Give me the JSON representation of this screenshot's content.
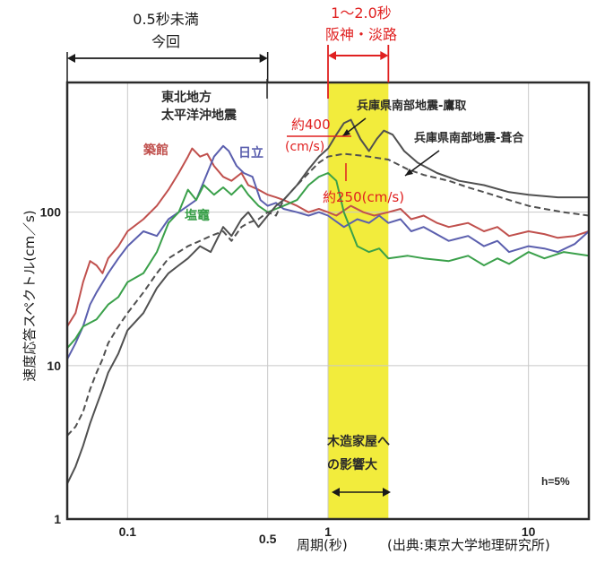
{
  "chart_data": {
    "type": "line",
    "xscale": "log",
    "yscale": "log",
    "xlim": [
      0.05,
      20
    ],
    "ylim": [
      1,
      700
    ],
    "ylabel": "速度応答スペクトル(cm／s)",
    "xlabel": "周期(秒)",
    "source": "(出典:東京大学地理研究所)",
    "x_ticks": [
      "0.1",
      "0.5",
      "1",
      "10"
    ],
    "y_ticks": [
      "1",
      "10",
      "100"
    ],
    "damping_label": "h=5%",
    "highlight_band": {
      "x": [
        1.0,
        2.0
      ],
      "color": "#f2ec3c",
      "labels": [
        "1〜2.0秒",
        "阪神・淡路"
      ],
      "note": [
        "木造家屋へ",
        "の影響大"
      ]
    },
    "range_annotation": {
      "x": [
        0.05,
        0.5
      ],
      "labels": [
        "0.5秒未満",
        "今回"
      ]
    },
    "value_annotations": [
      {
        "label": "約400",
        "unit": "(cm/s)",
        "x": 1.2,
        "y": 400
      },
      {
        "label": "約250(cm/s)",
        "x": 1.2,
        "y": 250
      }
    ],
    "group_label": [
      "東北地方",
      "太平洋沖地震"
    ],
    "series": [
      {
        "name": "築館",
        "color": "#c0504d",
        "dash": false,
        "points": [
          [
            0.05,
            18
          ],
          [
            0.055,
            22
          ],
          [
            0.06,
            35
          ],
          [
            0.065,
            48
          ],
          [
            0.07,
            45
          ],
          [
            0.075,
            40
          ],
          [
            0.08,
            50
          ],
          [
            0.09,
            60
          ],
          [
            0.1,
            75
          ],
          [
            0.12,
            90
          ],
          [
            0.14,
            110
          ],
          [
            0.16,
            140
          ],
          [
            0.18,
            180
          ],
          [
            0.2,
            230
          ],
          [
            0.21,
            260
          ],
          [
            0.23,
            230
          ],
          [
            0.25,
            240
          ],
          [
            0.27,
            200
          ],
          [
            0.3,
            170
          ],
          [
            0.33,
            160
          ],
          [
            0.37,
            180
          ],
          [
            0.4,
            150
          ],
          [
            0.45,
            140
          ],
          [
            0.5,
            130
          ],
          [
            0.55,
            125
          ],
          [
            0.6,
            120
          ],
          [
            0.7,
            110
          ],
          [
            0.8,
            100
          ],
          [
            0.9,
            105
          ],
          [
            1.0,
            100
          ],
          [
            1.1,
            95
          ],
          [
            1.3,
            110
          ],
          [
            1.5,
            100
          ],
          [
            1.7,
            95
          ],
          [
            2.0,
            100
          ],
          [
            2.3,
            105
          ],
          [
            2.6,
            90
          ],
          [
            3.0,
            95
          ],
          [
            3.5,
            85
          ],
          [
            4,
            80
          ],
          [
            5,
            85
          ],
          [
            6,
            75
          ],
          [
            7,
            80
          ],
          [
            8,
            70
          ],
          [
            10,
            75
          ],
          [
            12,
            72
          ],
          [
            14,
            68
          ],
          [
            17,
            70
          ],
          [
            20,
            75
          ]
        ]
      },
      {
        "name": "日立",
        "color": "#5b5fae",
        "dash": false,
        "points": [
          [
            0.05,
            11
          ],
          [
            0.055,
            14
          ],
          [
            0.06,
            18
          ],
          [
            0.065,
            25
          ],
          [
            0.07,
            30
          ],
          [
            0.08,
            40
          ],
          [
            0.09,
            50
          ],
          [
            0.1,
            60
          ],
          [
            0.12,
            75
          ],
          [
            0.14,
            70
          ],
          [
            0.16,
            90
          ],
          [
            0.18,
            100
          ],
          [
            0.2,
            110
          ],
          [
            0.22,
            120
          ],
          [
            0.25,
            180
          ],
          [
            0.27,
            230
          ],
          [
            0.3,
            270
          ],
          [
            0.32,
            250
          ],
          [
            0.35,
            200
          ],
          [
            0.38,
            180
          ],
          [
            0.42,
            170
          ],
          [
            0.46,
            120
          ],
          [
            0.5,
            110
          ],
          [
            0.55,
            115
          ],
          [
            0.6,
            105
          ],
          [
            0.7,
            100
          ],
          [
            0.8,
            95
          ],
          [
            0.9,
            100
          ],
          [
            1.0,
            95
          ],
          [
            1.2,
            80
          ],
          [
            1.4,
            90
          ],
          [
            1.6,
            85
          ],
          [
            1.8,
            95
          ],
          [
            2.0,
            85
          ],
          [
            2.3,
            90
          ],
          [
            2.6,
            75
          ],
          [
            3,
            80
          ],
          [
            4,
            65
          ],
          [
            5,
            70
          ],
          [
            6,
            60
          ],
          [
            7,
            65
          ],
          [
            8,
            55
          ],
          [
            10,
            60
          ],
          [
            12,
            58
          ],
          [
            14,
            55
          ],
          [
            17,
            62
          ],
          [
            20,
            75
          ]
        ]
      },
      {
        "name": "塩竈",
        "color": "#3aa04a",
        "dash": false,
        "points": [
          [
            0.05,
            13
          ],
          [
            0.055,
            15
          ],
          [
            0.06,
            18
          ],
          [
            0.07,
            20
          ],
          [
            0.08,
            25
          ],
          [
            0.09,
            28
          ],
          [
            0.1,
            35
          ],
          [
            0.12,
            40
          ],
          [
            0.14,
            55
          ],
          [
            0.16,
            85
          ],
          [
            0.18,
            100
          ],
          [
            0.2,
            140
          ],
          [
            0.22,
            120
          ],
          [
            0.24,
            150
          ],
          [
            0.27,
            130
          ],
          [
            0.3,
            145
          ],
          [
            0.33,
            130
          ],
          [
            0.37,
            150
          ],
          [
            0.4,
            130
          ],
          [
            0.45,
            110
          ],
          [
            0.5,
            100
          ],
          [
            0.55,
            105
          ],
          [
            0.6,
            110
          ],
          [
            0.7,
            120
          ],
          [
            0.8,
            150
          ],
          [
            0.9,
            170
          ],
          [
            1.0,
            180
          ],
          [
            1.1,
            160
          ],
          [
            1.2,
            100
          ],
          [
            1.4,
            60
          ],
          [
            1.6,
            55
          ],
          [
            1.8,
            58
          ],
          [
            2.0,
            50
          ],
          [
            2.5,
            52
          ],
          [
            3,
            50
          ],
          [
            4,
            48
          ],
          [
            5,
            52
          ],
          [
            6,
            45
          ],
          [
            7,
            50
          ],
          [
            8,
            46
          ],
          [
            10,
            55
          ],
          [
            12,
            50
          ],
          [
            15,
            55
          ],
          [
            20,
            52
          ]
        ]
      },
      {
        "name": "兵庫県南部地震-鷹取",
        "color": "#505050",
        "dash": false,
        "points": [
          [
            0.05,
            1.7
          ],
          [
            0.055,
            2.2
          ],
          [
            0.06,
            3
          ],
          [
            0.065,
            4.2
          ],
          [
            0.07,
            5.5
          ],
          [
            0.075,
            7
          ],
          [
            0.08,
            9
          ],
          [
            0.09,
            12
          ],
          [
            0.1,
            17
          ],
          [
            0.12,
            22
          ],
          [
            0.14,
            32
          ],
          [
            0.16,
            40
          ],
          [
            0.18,
            45
          ],
          [
            0.2,
            50
          ],
          [
            0.23,
            60
          ],
          [
            0.26,
            55
          ],
          [
            0.3,
            80
          ],
          [
            0.33,
            70
          ],
          [
            0.37,
            90
          ],
          [
            0.4,
            100
          ],
          [
            0.45,
            80
          ],
          [
            0.5,
            95
          ],
          [
            0.55,
            110
          ],
          [
            0.6,
            120
          ],
          [
            0.7,
            150
          ],
          [
            0.8,
            190
          ],
          [
            0.9,
            230
          ],
          [
            1.0,
            260
          ],
          [
            1.1,
            320
          ],
          [
            1.2,
            380
          ],
          [
            1.3,
            400
          ],
          [
            1.45,
            300
          ],
          [
            1.6,
            250
          ],
          [
            1.75,
            300
          ],
          [
            1.9,
            340
          ],
          [
            2.1,
            320
          ],
          [
            2.4,
            250
          ],
          [
            2.8,
            210
          ],
          [
            3.5,
            180
          ],
          [
            4.5,
            160
          ],
          [
            6,
            150
          ],
          [
            8,
            135
          ],
          [
            10,
            130
          ],
          [
            14,
            125
          ],
          [
            20,
            125
          ]
        ]
      },
      {
        "name": "兵庫県南部地震-葺合",
        "color": "#505050",
        "dash": true,
        "points": [
          [
            0.05,
            3.5
          ],
          [
            0.055,
            4
          ],
          [
            0.06,
            5
          ],
          [
            0.065,
            7
          ],
          [
            0.07,
            9
          ],
          [
            0.075,
            11
          ],
          [
            0.08,
            14
          ],
          [
            0.09,
            18
          ],
          [
            0.1,
            22
          ],
          [
            0.12,
            30
          ],
          [
            0.14,
            40
          ],
          [
            0.16,
            50
          ],
          [
            0.18,
            55
          ],
          [
            0.2,
            60
          ],
          [
            0.23,
            65
          ],
          [
            0.26,
            70
          ],
          [
            0.3,
            75
          ],
          [
            0.33,
            65
          ],
          [
            0.37,
            80
          ],
          [
            0.4,
            85
          ],
          [
            0.45,
            90
          ],
          [
            0.5,
            100
          ],
          [
            0.55,
            95
          ],
          [
            0.6,
            120
          ],
          [
            0.7,
            150
          ],
          [
            0.8,
            180
          ],
          [
            0.9,
            210
          ],
          [
            1.0,
            230
          ],
          [
            1.2,
            240
          ],
          [
            1.4,
            235
          ],
          [
            1.6,
            230
          ],
          [
            2.0,
            220
          ],
          [
            2.5,
            190
          ],
          [
            3,
            175
          ],
          [
            4,
            160
          ],
          [
            5,
            145
          ],
          [
            6,
            135
          ],
          [
            8,
            120
          ],
          [
            10,
            110
          ],
          [
            12,
            105
          ],
          [
            15,
            100
          ],
          [
            20,
            95
          ]
        ]
      }
    ]
  }
}
